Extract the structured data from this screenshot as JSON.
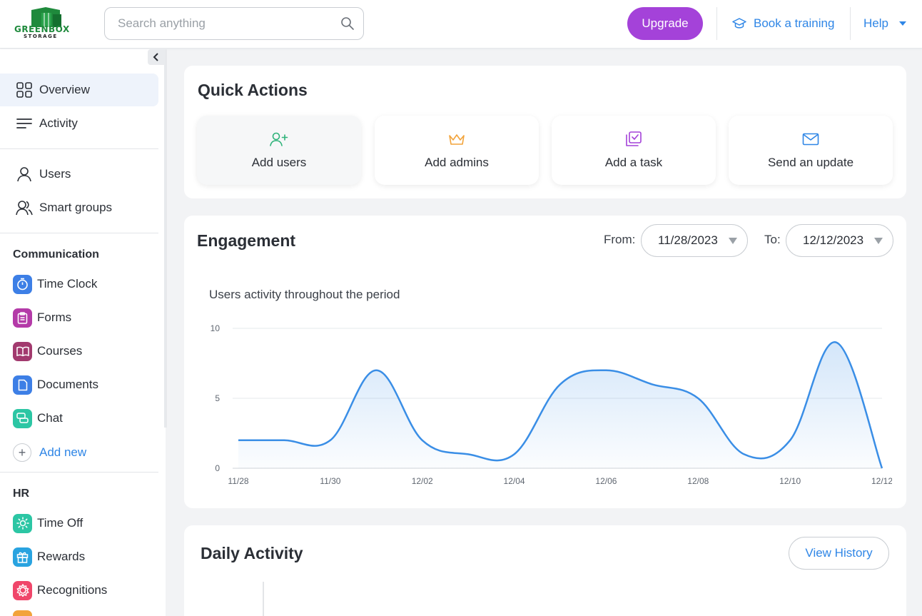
{
  "brand": {
    "name": "GREENBOX",
    "sub": "STORAGE",
    "color": "#1f8a3c"
  },
  "header": {
    "search_placeholder": "Search anything",
    "upgrade_label": "Upgrade",
    "book_training_label": "Book a training",
    "help_label": "Help"
  },
  "sidebar": {
    "main": [
      {
        "label": "Overview",
        "icon": "grid-icon",
        "active": true
      },
      {
        "label": "Activity",
        "icon": "lines-icon"
      }
    ],
    "people": [
      {
        "label": "Users",
        "icon": "user-icon"
      },
      {
        "label": "Smart groups",
        "icon": "users-icon"
      }
    ],
    "communication_title": "Communication",
    "communication": [
      {
        "label": "Time Clock",
        "icon": "stopwatch-icon",
        "color": "#3d7fe6"
      },
      {
        "label": "Forms",
        "icon": "clipboard-icon",
        "color": "#b43aa8"
      },
      {
        "label": "Courses",
        "icon": "book-icon",
        "color": "#a23a6e"
      },
      {
        "label": "Documents",
        "icon": "document-icon",
        "color": "#3d7fe6"
      },
      {
        "label": "Chat",
        "icon": "chat-icon",
        "color": "#2cc6a4"
      }
    ],
    "add_new_label": "Add new",
    "hr_title": "HR",
    "hr": [
      {
        "label": "Time Off",
        "icon": "sun-icon",
        "color": "#2cc6a4"
      },
      {
        "label": "Rewards",
        "icon": "gift-icon",
        "color": "#29a3e0"
      },
      {
        "label": "Recognitions",
        "icon": "badge-icon",
        "color": "#f0466a"
      }
    ]
  },
  "quick_actions": {
    "title": "Quick Actions",
    "items": [
      {
        "label": "Add users",
        "icon": "user-plus-icon",
        "color": "#2fb37a"
      },
      {
        "label": "Add admins",
        "icon": "crown-icon",
        "color": "#f2a33a"
      },
      {
        "label": "Add a task",
        "icon": "checklist-icon",
        "color": "#a442d9"
      },
      {
        "label": "Send an update",
        "icon": "envelope-icon",
        "color": "#2f86e6"
      }
    ]
  },
  "engagement": {
    "title": "Engagement",
    "from_label": "From:",
    "from_value": "11/28/2023",
    "to_label": "To:",
    "to_value": "12/12/2023",
    "chart_subtitle": "Users activity throughout the period"
  },
  "chart_data": {
    "type": "area",
    "title": "Users activity throughout the period",
    "x": [
      "11/28",
      "11/29",
      "11/30",
      "12/01",
      "12/02",
      "12/03",
      "12/04",
      "12/05",
      "12/06",
      "12/07",
      "12/08",
      "12/09",
      "12/10",
      "12/11",
      "12/12"
    ],
    "tick_labels": [
      "11/28",
      "11/30",
      "12/02",
      "12/04",
      "12/06",
      "12/08",
      "12/10",
      "12/12"
    ],
    "values": [
      2,
      2,
      2,
      7,
      2,
      1,
      1,
      6,
      7,
      6,
      5,
      1,
      2,
      9,
      0
    ],
    "ylim": [
      0,
      10
    ],
    "yticks": [
      0,
      5,
      10
    ],
    "grid": true,
    "color": "#3a8ee6"
  },
  "daily_activity": {
    "title": "Daily Activity",
    "view_history_label": "View History"
  }
}
